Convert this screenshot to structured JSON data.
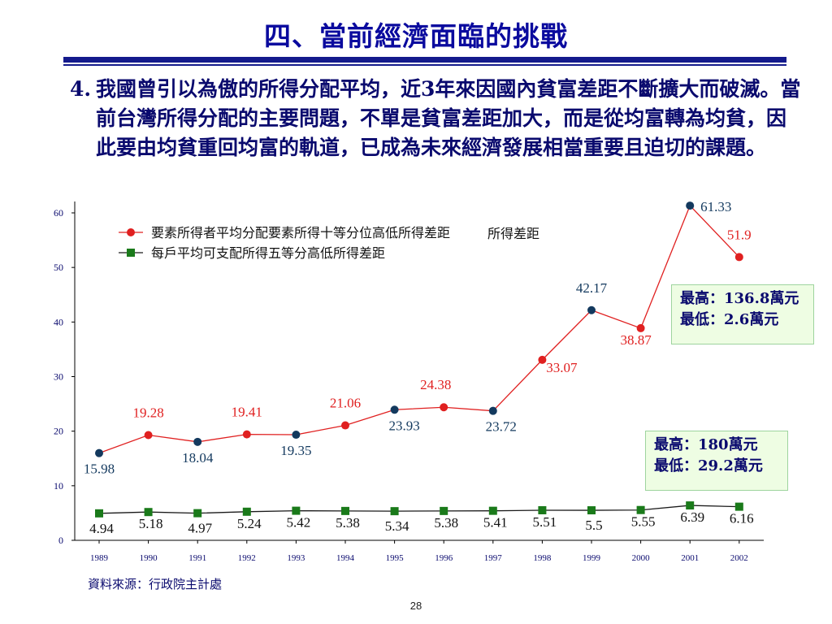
{
  "slide": {
    "title": "四、當前經濟面臨的挑戰",
    "paragraph_number": "4.",
    "paragraph": "我國曾引以為傲的所得分配平均，近3年來因國內貧富差距不斷擴大而破滅。當前台灣所得分配的主要問題，不單是貧富差距加大，而是從均富轉為均貧，因此要由均貧重回均富的軌道，已成為未來經濟發展相當重要且迫切的課題。",
    "source": "資料來源：行政院主計處",
    "page_number": "28"
  },
  "notes": {
    "top": {
      "line1": "最高：136.8萬元",
      "line2": "最低：2.6萬元"
    },
    "bottom": {
      "line1": "最高：180萬元",
      "line2": "最低：29.2萬元"
    }
  },
  "chart_data": {
    "type": "line",
    "x": [
      "1989",
      "1990",
      "1991",
      "1992",
      "1993",
      "1994",
      "1995",
      "1996",
      "1997",
      "1998",
      "1999",
      "2000",
      "2001",
      "2002"
    ],
    "ylim": [
      0,
      60
    ],
    "yticks": [
      0,
      10,
      20,
      30,
      40,
      50,
      60
    ],
    "grid": false,
    "legend_position": "top-left",
    "series": [
      {
        "name": "要素所得者平均分配要素所得十等分位高低所得差距",
        "color": "#e02020",
        "values": [
          15.98,
          19.28,
          18.04,
          19.41,
          19.35,
          21.06,
          23.93,
          24.38,
          23.72,
          33.07,
          42.17,
          38.87,
          61.33,
          51.9
        ],
        "labels": [
          "15.98",
          "19.28",
          "18.04",
          "19.41",
          "19.35",
          "21.06",
          "23.93",
          "24.38",
          "23.72",
          "33.07",
          "42.17",
          "38.87",
          "61.33",
          "51.9"
        ],
        "marker": "circle"
      },
      {
        "name": "每戶平均可支配所得五等分高低所得差距",
        "color": "#1a7a1a",
        "values": [
          4.94,
          5.18,
          4.97,
          5.24,
          5.42,
          5.38,
          5.34,
          5.38,
          5.41,
          5.51,
          5.5,
          5.55,
          6.39,
          6.16
        ],
        "labels": [
          "4.94",
          "5.18",
          "4.97",
          "5.24",
          "5.42",
          "5.38",
          "5.34",
          "5.38",
          "5.41",
          "5.51",
          "5.5",
          "5.55",
          "6.39",
          "6.16"
        ],
        "marker": "square"
      }
    ],
    "overlap_text": "所得差距"
  }
}
